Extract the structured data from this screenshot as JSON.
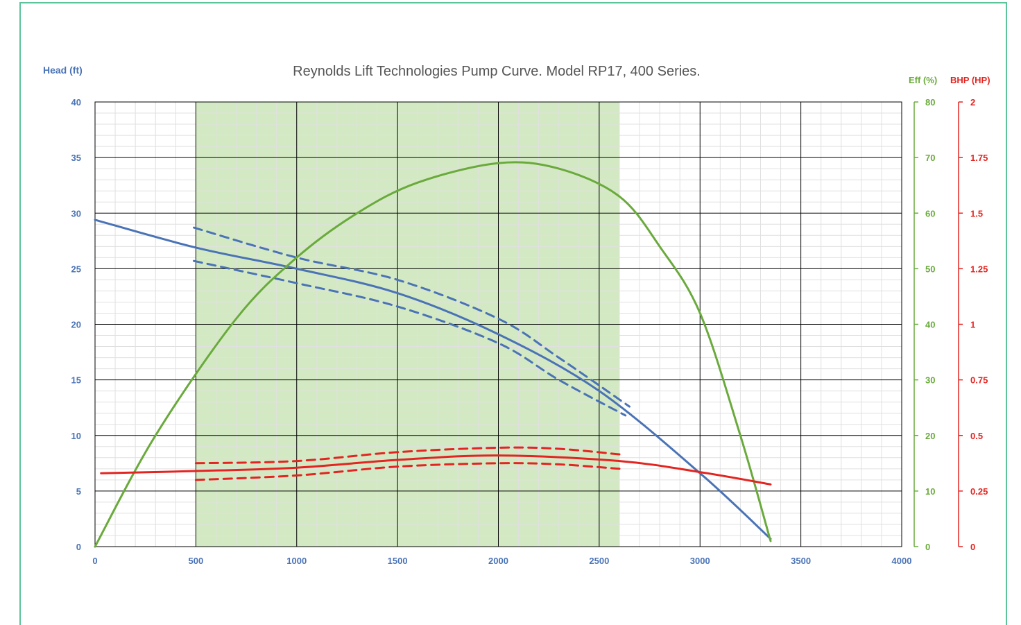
{
  "chart_data": {
    "type": "line",
    "title": "Reynolds Lift Technologies Pump Curve. Model RP17, 400 Series.",
    "axes": {
      "head": {
        "label": "Head (ft)",
        "range": [
          0,
          40
        ],
        "ticks": [
          "0",
          "5",
          "10",
          "15",
          "20",
          "25",
          "30",
          "35",
          "40"
        ]
      },
      "eff": {
        "label": "Eff (%)",
        "range": [
          0,
          80
        ],
        "ticks": [
          "0",
          "10",
          "20",
          "30",
          "40",
          "50",
          "60",
          "70",
          "80"
        ]
      },
      "bhp": {
        "label": "BHP (HP)",
        "range": [
          0,
          2
        ],
        "ticks": [
          "0",
          "0.25",
          "0.5",
          "0.75",
          "1",
          "1.25",
          "1.5",
          "1.75",
          "2"
        ]
      },
      "x": {
        "label": "",
        "range": [
          0,
          4000
        ],
        "ticks": [
          "0",
          "500",
          "1000",
          "1500",
          "2000",
          "2500",
          "3000",
          "3500",
          "4000"
        ]
      }
    },
    "recommended_range": {
      "from": 500,
      "to": 2600
    },
    "grid": true,
    "colors": {
      "head": "#4a73b6",
      "eff": "#6aaa3c",
      "bhp": "#e32420",
      "band": "#d3e9c3",
      "border": "#5cc49a"
    },
    "series": [
      {
        "axis": "head",
        "style": "solid",
        "x": [
          0,
          500,
          1000,
          1500,
          2000,
          2500,
          3000,
          3350
        ],
        "y": [
          29.4,
          26.9,
          25.0,
          22.8,
          19.1,
          14.0,
          6.6,
          0.7
        ]
      },
      {
        "axis": "head",
        "style": "dashed",
        "x": [
          490,
          1000,
          1500,
          2000,
          2300,
          2650
        ],
        "y": [
          28.7,
          26.0,
          24.0,
          20.5,
          17.0,
          12.6
        ]
      },
      {
        "axis": "head",
        "style": "dashed",
        "x": [
          490,
          1000,
          1500,
          2000,
          2300,
          2630
        ],
        "y": [
          25.7,
          23.7,
          21.6,
          18.3,
          15.0,
          11.8
        ]
      },
      {
        "axis": "eff",
        "style": "solid",
        "x": [
          0,
          300,
          700,
          1000,
          1300,
          1600,
          2000,
          2300,
          2600,
          2800,
          3000,
          3200,
          3350
        ],
        "y": [
          0,
          20,
          41,
          52,
          60,
          65.5,
          69,
          68,
          63,
          54,
          42,
          20,
          1
        ]
      },
      {
        "axis": "bhp",
        "style": "solid",
        "x": [
          30,
          500,
          1000,
          1500,
          2000,
          2600,
          3000,
          3350
        ],
        "y": [
          0.33,
          0.34,
          0.355,
          0.39,
          0.41,
          0.385,
          0.335,
          0.28
        ]
      },
      {
        "axis": "bhp",
        "style": "dashed",
        "x": [
          500,
          1000,
          1500,
          2000,
          2300,
          2600
        ],
        "y": [
          0.375,
          0.385,
          0.425,
          0.445,
          0.44,
          0.415
        ]
      },
      {
        "axis": "bhp",
        "style": "dashed",
        "x": [
          500,
          1000,
          1500,
          2000,
          2300,
          2600
        ],
        "y": [
          0.3,
          0.32,
          0.36,
          0.375,
          0.37,
          0.35
        ]
      }
    ]
  }
}
